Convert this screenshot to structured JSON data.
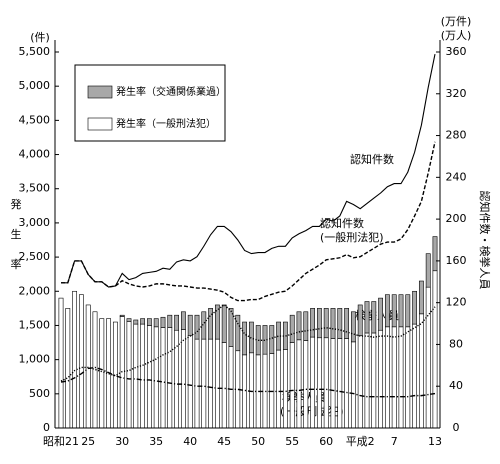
{
  "chart_data": {
    "type": "combo",
    "axis_label_left_unit": "(件)",
    "axis_label_left": [
      "発",
      "生",
      "率"
    ],
    "axis_label_right_unit": [
      "(万件)",
      "(万人)"
    ],
    "axis_label_right": "認知件数・検挙人員",
    "categories": [
      "昭和21",
      null,
      null,
      null,
      "25",
      null,
      null,
      null,
      null,
      "30",
      null,
      null,
      null,
      null,
      "35",
      null,
      null,
      null,
      null,
      "40",
      null,
      null,
      null,
      null,
      "45",
      null,
      null,
      null,
      null,
      "50",
      null,
      null,
      null,
      null,
      "55",
      null,
      null,
      null,
      null,
      "60",
      null,
      null,
      null,
      null,
      "平成2",
      null,
      null,
      null,
      null,
      "7",
      null,
      null,
      null,
      null,
      null,
      "13"
    ],
    "ylim": [
      0,
      5500
    ],
    "yticks": [
      0,
      500,
      {
        "value": 1000,
        "label": "1,000"
      },
      {
        "value": 1500,
        "label": "1,500"
      },
      {
        "value": 2000,
        "label": "2,000"
      },
      {
        "value": 2500,
        "label": "2,500"
      },
      {
        "value": 3000,
        "label": "3,000"
      },
      {
        "value": 3500,
        "label": "3,500"
      },
      {
        "value": 4000,
        "label": "4,000"
      },
      {
        "value": 4500,
        "label": "4,500"
      },
      {
        "value": 5000,
        "label": "5,000"
      },
      {
        "value": 5500,
        "label": "5,500"
      }
    ],
    "y2lim": [
      0,
      360
    ],
    "y2ticks": [
      0,
      40,
      80,
      120,
      160,
      200,
      240,
      280,
      320,
      360
    ],
    "bar_series": [
      {
        "name": "発生率（交通関係業過）",
        "color": "#a8a8a8",
        "values": [
          0,
          0,
          0,
          0,
          0,
          0,
          0,
          0,
          0,
          20,
          40,
          60,
          80,
          100,
          120,
          150,
          180,
          220,
          260,
          300,
          350,
          400,
          450,
          500,
          550,
          560,
          520,
          480,
          450,
          430,
          420,
          410,
          410,
          400,
          400,
          410,
          420,
          420,
          430,
          430,
          440,
          440,
          440,
          440,
          450,
          460,
          460,
          470,
          470,
          470,
          470,
          470,
          480,
          480,
          490,
          500
        ]
      },
      {
        "name": "発生率（一般刑法犯）",
        "color": "#ffffff",
        "values": [
          1900,
          1750,
          2000,
          1950,
          1800,
          1700,
          1600,
          1600,
          1550,
          1630,
          1560,
          1520,
          1520,
          1500,
          1480,
          1470,
          1470,
          1430,
          1440,
          1350,
          1300,
          1300,
          1300,
          1300,
          1250,
          1190,
          1130,
          1070,
          1100,
          1070,
          1080,
          1090,
          1140,
          1150,
          1250,
          1290,
          1280,
          1330,
          1320,
          1320,
          1310,
          1310,
          1310,
          1260,
          1350,
          1390,
          1390,
          1430,
          1480,
          1480,
          1480,
          1480,
          1520,
          1670,
          2060,
          2300
        ]
      }
    ],
    "line_series": [
      {
        "label": [
          "認知件数"
        ],
        "style": "solid",
        "color": "#000000",
        "axis": "y2",
        "values": [
          139,
          139,
          160,
          160,
          147,
          140,
          140,
          135,
          136,
          148,
          142,
          144,
          148,
          149,
          150,
          153,
          152,
          159,
          161,
          160,
          164,
          174,
          185,
          193,
          193,
          188,
          180,
          170,
          167,
          168,
          168,
          172,
          174,
          174,
          182,
          186,
          189,
          193,
          193,
          200,
          198,
          203,
          217,
          214,
          210,
          215,
          220,
          225,
          231,
          234,
          234,
          245,
          264,
          290,
          326,
          358
        ]
      },
      {
        "label": [
          "認知件数",
          "(一般刑法犯)"
        ],
        "style": "dashed",
        "color": "#000000",
        "axis": "y2",
        "values": [
          139,
          139,
          160,
          160,
          147,
          140,
          140,
          135,
          136,
          141,
          138,
          136,
          135,
          136,
          138,
          138,
          137,
          136,
          136,
          135,
          134,
          134,
          133,
          132,
          130,
          125,
          122,
          122,
          123,
          123,
          126,
          128,
          130,
          131,
          136,
          142,
          148,
          152,
          156,
          161,
          162,
          163,
          166,
          163,
          164,
          168,
          172,
          176,
          178,
          178,
          181,
          190,
          203,
          217,
          244,
          274
        ]
      },
      {
        "label": [
          "検挙人員"
        ],
        "style": "dotted",
        "color": "#000000",
        "axis": "y2",
        "values": [
          45,
          48,
          55,
          58,
          58,
          56,
          54,
          52,
          50,
          54,
          55,
          58,
          60,
          63,
          66,
          70,
          73,
          78,
          84,
          88,
          92,
          100,
          108,
          113,
          118,
          112,
          100,
          90,
          86,
          84,
          84,
          86,
          88,
          88,
          90,
          92,
          93,
          94,
          95,
          96,
          95,
          94,
          92,
          90,
          88,
          88,
          87,
          88,
          88,
          87,
          88,
          92,
          96,
          100,
          108,
          116
        ]
      },
      {
        "label": [
          "検挙人員",
          "(一般刑法犯)"
        ],
        "style": "dashdot",
        "color": "#000000",
        "axis": "y2",
        "values": [
          44,
          45,
          48,
          52,
          57,
          58,
          56,
          53,
          50,
          48,
          47,
          47,
          46,
          46,
          45,
          44,
          43,
          42,
          42,
          41,
          40,
          40,
          39,
          38,
          38,
          37,
          37,
          36,
          35,
          35,
          35,
          35,
          35,
          35,
          36,
          36,
          37,
          37,
          37,
          37,
          36,
          35,
          34,
          33,
          31,
          30,
          30,
          30,
          30,
          30,
          30,
          30,
          31,
          31,
          32,
          33
        ]
      }
    ]
  }
}
